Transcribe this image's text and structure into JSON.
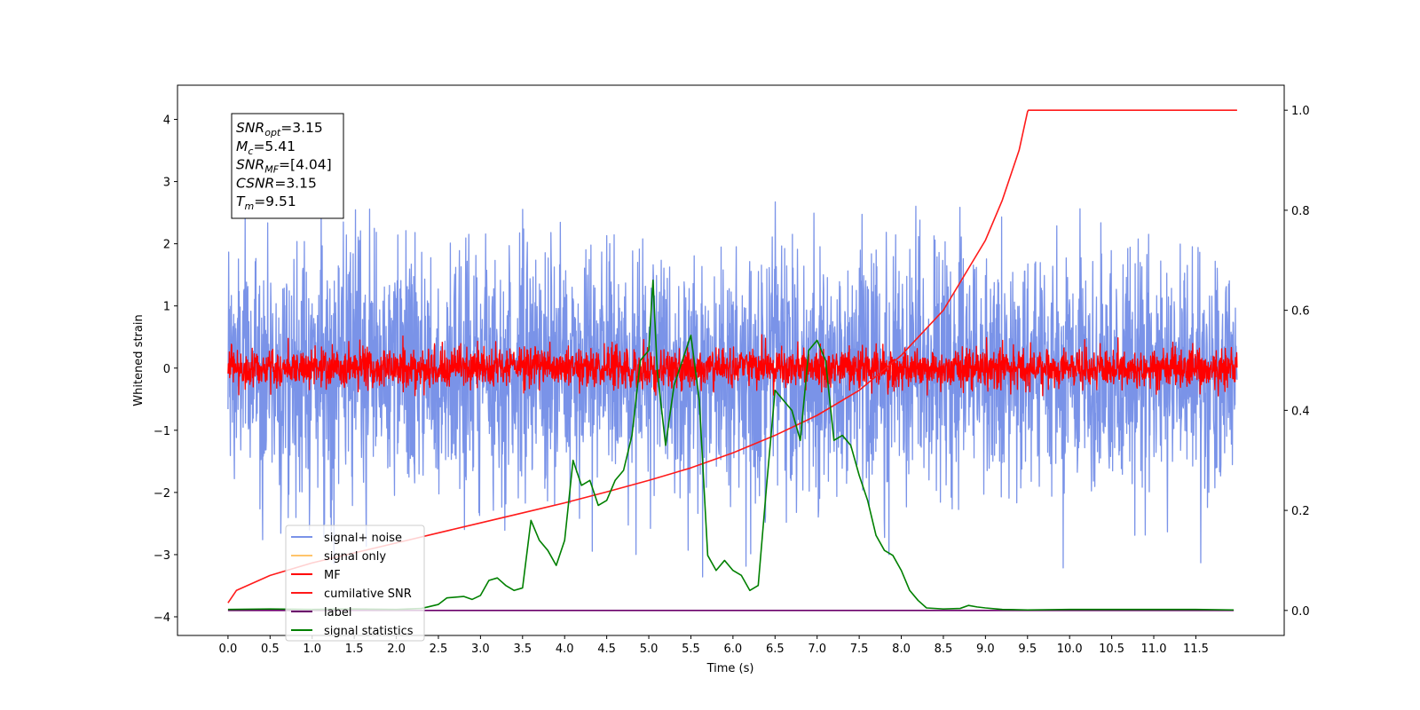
{
  "chart_data": {
    "type": "line",
    "xlabel": "Time (s)",
    "ylabel": "Whitened strain",
    "xlim": [
      -0.6,
      12.55
    ],
    "ylim": [
      -4.3,
      4.55
    ],
    "y2lim": [
      -0.05,
      1.05
    ],
    "x_ticks": [
      0.0,
      0.5,
      1.0,
      1.5,
      2.0,
      2.5,
      3.0,
      3.5,
      4.0,
      4.5,
      5.0,
      5.5,
      6.0,
      6.5,
      7.0,
      7.5,
      8.0,
      8.5,
      9.0,
      9.5,
      10.0,
      10.5,
      11.0,
      11.5
    ],
    "x_tick_labels": [
      "0.0",
      "0.5",
      "1.0",
      "1.5",
      "2.0",
      "2.5",
      "3.0",
      "3.5",
      "4.0",
      "4.5",
      "5.0",
      "5.5",
      "6.0",
      "6.5",
      "7.0",
      "7.5",
      "8.0",
      "8.5",
      "9.0",
      "9.5",
      "10.0",
      "10.5",
      "11.0",
      "11.5"
    ],
    "y_ticks": [
      -4,
      -3,
      -2,
      -1,
      0,
      1,
      2,
      3,
      4
    ],
    "y_tick_labels": [
      "−4",
      "−3",
      "−2",
      "−1",
      "0",
      "1",
      "2",
      "3",
      "4"
    ],
    "y2_ticks": [
      0.0,
      0.2,
      0.4,
      0.6,
      0.8,
      1.0
    ],
    "y2_tick_labels": [
      "0.0",
      "0.2",
      "0.4",
      "0.6",
      "0.8",
      "1.0"
    ],
    "legend_placement": "lower-left",
    "grid": false,
    "annotation_box": {
      "placement": "upper-left",
      "lines": [
        {
          "base": "SNR",
          "sub": "opt",
          "rest": "=3.15"
        },
        {
          "base": "M",
          "sub": "c",
          "rest": "=5.41"
        },
        {
          "base": "SNR",
          "sub": "MF",
          "rest": "=[4.04]"
        },
        {
          "base": "CSNR",
          "sub": "",
          "rest": "=3.15"
        },
        {
          "base": "T",
          "sub": "m",
          "rest": "=9.51"
        }
      ]
    },
    "series": [
      {
        "name": "signal+ noise",
        "color": "#7a93e8",
        "axis": "left",
        "kind": "noise",
        "x_range": [
          0.0,
          11.99
        ],
        "center": 0.0,
        "sigma": 1.0,
        "spikes_max": 4.15,
        "spikes_min": -3.85
      },
      {
        "name": "signal only",
        "color": "#ffc46b",
        "axis": "left",
        "kind": "hidden",
        "x": [
          0.0,
          11.99
        ],
        "y": [
          0.0,
          0.0
        ]
      },
      {
        "name": "MF",
        "color": "#ff0000",
        "axis": "left",
        "kind": "noise",
        "x_range": [
          0.0,
          11.99
        ],
        "center": 0.0,
        "sigma": 0.16,
        "spikes_max": 1.0,
        "spikes_min": -0.45
      },
      {
        "name": "cumilative SNR",
        "color": "#ff1a1a",
        "axis": "right",
        "kind": "curve",
        "x": [
          0.0,
          0.1,
          0.5,
          1.0,
          1.5,
          2.0,
          2.5,
          3.0,
          3.5,
          4.0,
          4.5,
          5.0,
          5.5,
          6.0,
          6.5,
          7.0,
          7.5,
          8.0,
          8.5,
          9.0,
          9.2,
          9.4,
          9.5,
          9.51,
          10.0,
          10.5,
          11.0,
          11.5,
          11.99
        ],
        "y": [
          0.015,
          0.04,
          0.07,
          0.095,
          0.115,
          0.135,
          0.155,
          0.175,
          0.195,
          0.215,
          0.237,
          0.26,
          0.285,
          0.315,
          0.35,
          0.39,
          0.44,
          0.51,
          0.6,
          0.74,
          0.82,
          0.92,
          0.997,
          1.0,
          1.0,
          1.0,
          1.0,
          1.0,
          1.0
        ]
      },
      {
        "name": "label",
        "color": "#6b006b",
        "axis": "right",
        "kind": "curve",
        "x": [
          0.0,
          11.95
        ],
        "y": [
          0.0,
          0.0
        ]
      },
      {
        "name": "signal statistics",
        "color": "#008000",
        "axis": "right",
        "kind": "curve",
        "x": [
          0.0,
          0.5,
          1.0,
          1.5,
          2.0,
          2.3,
          2.5,
          2.6,
          2.8,
          2.9,
          3.0,
          3.1,
          3.2,
          3.3,
          3.4,
          3.5,
          3.6,
          3.7,
          3.8,
          3.9,
          4.0,
          4.1,
          4.2,
          4.3,
          4.4,
          4.5,
          4.6,
          4.7,
          4.8,
          4.9,
          5.0,
          5.05,
          5.1,
          5.2,
          5.3,
          5.4,
          5.5,
          5.6,
          5.7,
          5.8,
          5.9,
          6.0,
          6.1,
          6.2,
          6.3,
          6.4,
          6.5,
          6.6,
          6.7,
          6.8,
          6.9,
          7.0,
          7.1,
          7.2,
          7.3,
          7.4,
          7.5,
          7.6,
          7.7,
          7.8,
          7.9,
          8.0,
          8.1,
          8.2,
          8.3,
          8.5,
          8.7,
          8.8,
          8.9,
          9.0,
          9.2,
          9.5,
          10.0,
          10.5,
          11.0,
          11.5,
          11.95
        ],
        "y": [
          0.002,
          0.003,
          0.002,
          0.003,
          0.002,
          0.004,
          0.012,
          0.025,
          0.028,
          0.022,
          0.03,
          0.06,
          0.065,
          0.05,
          0.04,
          0.045,
          0.18,
          0.14,
          0.12,
          0.09,
          0.14,
          0.3,
          0.25,
          0.26,
          0.21,
          0.22,
          0.26,
          0.28,
          0.35,
          0.5,
          0.52,
          0.66,
          0.48,
          0.33,
          0.45,
          0.5,
          0.55,
          0.42,
          0.11,
          0.08,
          0.1,
          0.08,
          0.07,
          0.04,
          0.05,
          0.25,
          0.44,
          0.42,
          0.4,
          0.34,
          0.52,
          0.54,
          0.5,
          0.34,
          0.35,
          0.33,
          0.27,
          0.22,
          0.15,
          0.12,
          0.11,
          0.08,
          0.04,
          0.02,
          0.005,
          0.003,
          0.004,
          0.01,
          0.007,
          0.005,
          0.002,
          0.001,
          0.002,
          0.002,
          0.002,
          0.002,
          0.001
        ]
      }
    ]
  }
}
